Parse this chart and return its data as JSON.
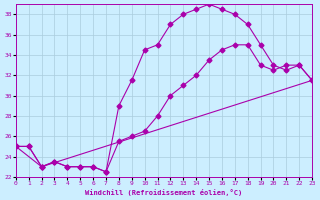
{
  "xlabel": "Windchill (Refroidissement éolien,°C)",
  "bg_color": "#cceeff",
  "grid_color": "#aaccdd",
  "line_color": "#aa00aa",
  "xlim": [
    0,
    23
  ],
  "ylim": [
    22,
    39
  ],
  "yticks": [
    22,
    24,
    26,
    28,
    30,
    32,
    34,
    36,
    38
  ],
  "xticks": [
    0,
    1,
    2,
    3,
    4,
    5,
    6,
    7,
    8,
    9,
    10,
    11,
    12,
    13,
    14,
    15,
    16,
    17,
    18,
    19,
    20,
    21,
    22,
    23
  ],
  "line1_x": [
    0,
    1,
    2,
    3,
    4,
    5,
    6,
    7,
    8,
    9,
    10,
    11,
    12,
    13,
    14,
    15,
    16,
    17,
    18,
    19,
    20,
    21,
    22,
    23
  ],
  "line1_y": [
    25,
    25,
    23,
    23.5,
    23,
    23,
    23,
    22.5,
    29,
    31.5,
    34.5,
    35,
    37,
    38,
    38.5,
    39,
    38.5,
    38,
    37,
    35,
    33,
    32.5,
    33,
    31.5
  ],
  "line2_x": [
    0,
    1,
    2,
    3,
    4,
    5,
    6,
    7,
    8,
    9,
    10,
    11,
    12,
    13,
    14,
    15,
    16,
    17,
    18,
    19,
    20,
    21,
    22,
    23
  ],
  "line2_y": [
    25,
    25,
    23,
    23.5,
    23,
    23,
    23,
    22.5,
    25.5,
    26,
    26.5,
    28,
    30,
    31,
    32,
    33.5,
    34.5,
    35,
    35,
    33,
    32.5,
    33,
    33,
    31.5
  ],
  "line3_x": [
    0,
    2,
    23
  ],
  "line3_y": [
    25,
    23,
    31.5
  ]
}
